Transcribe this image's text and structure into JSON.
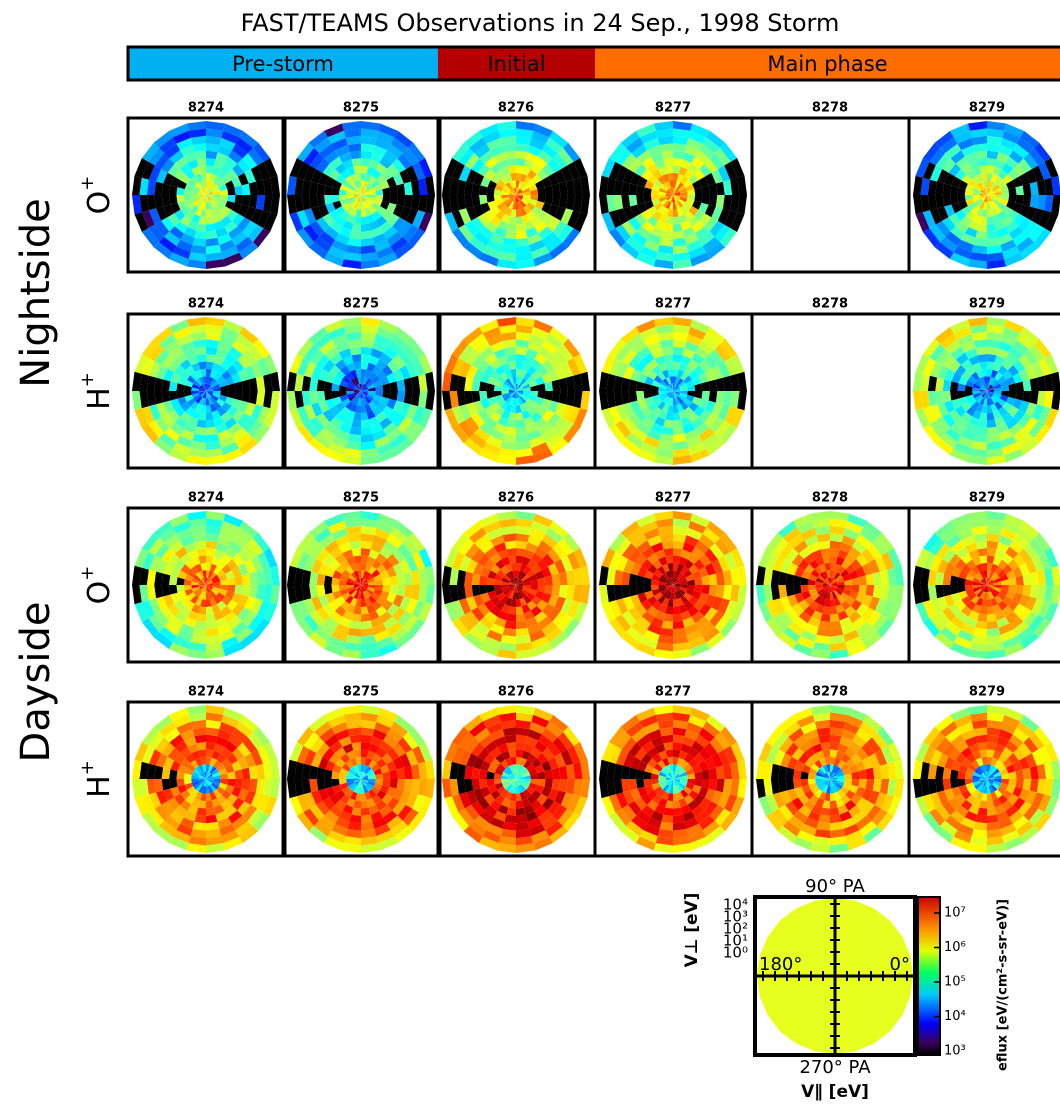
{
  "title": "FAST/TEAMS Observations in 24 Sep., 1998 Storm",
  "phases": [
    {
      "label": "Pre-storm",
      "color": "#00b0f0"
    },
    {
      "label": "Initial",
      "color": "#b40000"
    },
    {
      "label": "Main phase",
      "color": "#ff6c00"
    }
  ],
  "groups": [
    {
      "label": "Nightside",
      "rows": [
        {
          "species": "O",
          "charge": "+",
          "orbits": [
            "8274",
            "8275",
            "8276",
            "8277",
            "8278",
            "8279"
          ],
          "empty_panels": [
            4
          ]
        },
        {
          "species": "H",
          "charge": "+",
          "orbits": [
            "8274",
            "8275",
            "8276",
            "8277",
            "8278",
            "8279"
          ],
          "empty_panels": [
            4
          ]
        }
      ]
    },
    {
      "label": "Dayside",
      "rows": [
        {
          "species": "O",
          "charge": "+",
          "orbits": [
            "8274",
            "8275",
            "8276",
            "8277",
            "8278",
            "8279"
          ],
          "empty_panels": []
        },
        {
          "species": "H",
          "charge": "+",
          "orbits": [
            "8274",
            "8275",
            "8276",
            "8277",
            "8278",
            "8279"
          ],
          "empty_panels": []
        }
      ]
    }
  ],
  "legend": {
    "top": "90° PA",
    "bottom": "270° PA",
    "left": "180°",
    "right": "0°",
    "y_label": "V⊥ [eV]",
    "x_label": "V∥ [eV]",
    "y_ticks": [
      "10⁴",
      "10³",
      "10²",
      "10¹",
      "10⁰"
    ],
    "colorbar_ticks": [
      "10⁷",
      "10⁶",
      "10⁵",
      "10⁴",
      "10³"
    ],
    "colorbar_label": "eflux [eV/(cm²-s-sr-eV)]"
  }
}
